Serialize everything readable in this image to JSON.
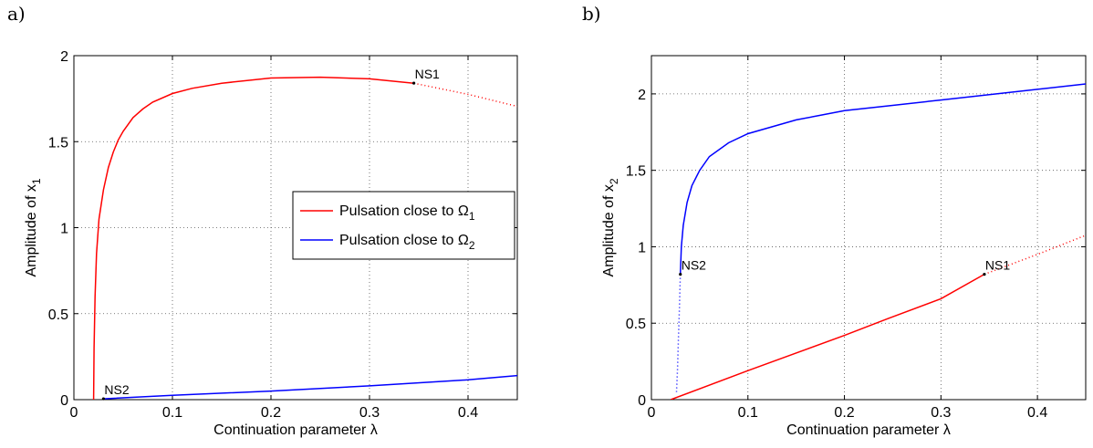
{
  "chart_data": [
    {
      "type": "line",
      "panel_label": "a)",
      "xlabel": "Continuation parameter λ",
      "ylabel": "Amplitude of x",
      "ylabel_sub": "1",
      "xlim": [
        0,
        0.45
      ],
      "ylim": [
        0,
        2
      ],
      "xticks": [
        0,
        0.1,
        0.2,
        0.3,
        0.4
      ],
      "yticks": [
        0,
        0.5,
        1,
        1.5,
        2
      ],
      "xtick_labels": [
        "0",
        "0.1",
        "0.2",
        "0.3",
        "0.4"
      ],
      "ytick_labels": [
        "0",
        "0.5",
        "1",
        "1.5",
        "2"
      ],
      "grid": true,
      "legend_placement": "center-right",
      "series": [
        {
          "name": "Pulsation close to Ω",
          "name_sub": "1",
          "color": "#ff0000",
          "solid": [
            [
              0.02,
              0
            ],
            [
              0.0205,
              0.3
            ],
            [
              0.0215,
              0.6
            ],
            [
              0.023,
              0.85
            ],
            [
              0.0255,
              1.05
            ],
            [
              0.03,
              1.22
            ],
            [
              0.035,
              1.35
            ],
            [
              0.04,
              1.44
            ],
            [
              0.045,
              1.51
            ],
            [
              0.05,
              1.56
            ],
            [
              0.06,
              1.64
            ],
            [
              0.07,
              1.69
            ],
            [
              0.08,
              1.73
            ],
            [
              0.1,
              1.78
            ],
            [
              0.12,
              1.81
            ],
            [
              0.15,
              1.84
            ],
            [
              0.2,
              1.87
            ],
            [
              0.25,
              1.875
            ],
            [
              0.3,
              1.865
            ],
            [
              0.345,
              1.84
            ]
          ],
          "dotted": [
            [
              0.345,
              1.84
            ],
            [
              0.4,
              1.775
            ],
            [
              0.45,
              1.705
            ]
          ]
        },
        {
          "name": "Pulsation close to Ω",
          "name_sub": "2",
          "color": "#0000ff",
          "solid": [
            [
              0.03,
              0.005
            ],
            [
              0.1,
              0.025
            ],
            [
              0.2,
              0.05
            ],
            [
              0.3,
              0.08
            ],
            [
              0.4,
              0.115
            ],
            [
              0.45,
              0.14
            ]
          ],
          "dotted": []
        }
      ],
      "annotations": [
        {
          "text": "NS1",
          "x": 0.345,
          "y": 1.84
        },
        {
          "text": "NS2",
          "x": 0.03,
          "y": 0.005
        }
      ]
    },
    {
      "type": "line",
      "panel_label": "b)",
      "xlabel": "Continuation parameter λ",
      "ylabel": "Amplitude of x",
      "ylabel_sub": "2",
      "xlim": [
        0,
        0.45
      ],
      "ylim": [
        0,
        2.25
      ],
      "xticks": [
        0,
        0.1,
        0.2,
        0.3,
        0.4
      ],
      "yticks": [
        0,
        0.5,
        1,
        1.5,
        2
      ],
      "xtick_labels": [
        "0",
        "0.1",
        "0.2",
        "0.3",
        "0.4"
      ],
      "ytick_labels": [
        "0",
        "0.5",
        "1",
        "1.5",
        "2"
      ],
      "grid": true,
      "series": [
        {
          "color": "#0000ff",
          "solid": [
            [
              0.03,
              0.82
            ],
            [
              0.031,
              1.0
            ],
            [
              0.033,
              1.14
            ],
            [
              0.037,
              1.29
            ],
            [
              0.042,
              1.4
            ],
            [
              0.05,
              1.5
            ],
            [
              0.06,
              1.59
            ],
            [
              0.08,
              1.68
            ],
            [
              0.1,
              1.74
            ],
            [
              0.15,
              1.83
            ],
            [
              0.2,
              1.89
            ],
            [
              0.25,
              1.925
            ],
            [
              0.3,
              1.96
            ],
            [
              0.35,
              1.995
            ],
            [
              0.4,
              2.03
            ],
            [
              0.45,
              2.065
            ]
          ],
          "dotted": [
            [
              0.03,
              0.82
            ],
            [
              0.029,
              0.6
            ],
            [
              0.028,
              0.4
            ],
            [
              0.027,
              0.2
            ],
            [
              0.026,
              0.05
            ]
          ]
        },
        {
          "color": "#ff0000",
          "solid": [
            [
              0.02,
              0
            ],
            [
              0.1,
              0.19
            ],
            [
              0.2,
              0.42
            ],
            [
              0.245,
              0.53
            ],
            [
              0.3,
              0.66
            ],
            [
              0.345,
              0.82
            ]
          ],
          "dotted": [
            [
              0.345,
              0.82
            ],
            [
              0.4,
              0.95
            ],
            [
              0.45,
              1.075
            ]
          ]
        }
      ],
      "annotations": [
        {
          "text": "NS1",
          "x": 0.345,
          "y": 0.82
        },
        {
          "text": "NS2",
          "x": 0.03,
          "y": 0.82
        }
      ]
    }
  ]
}
